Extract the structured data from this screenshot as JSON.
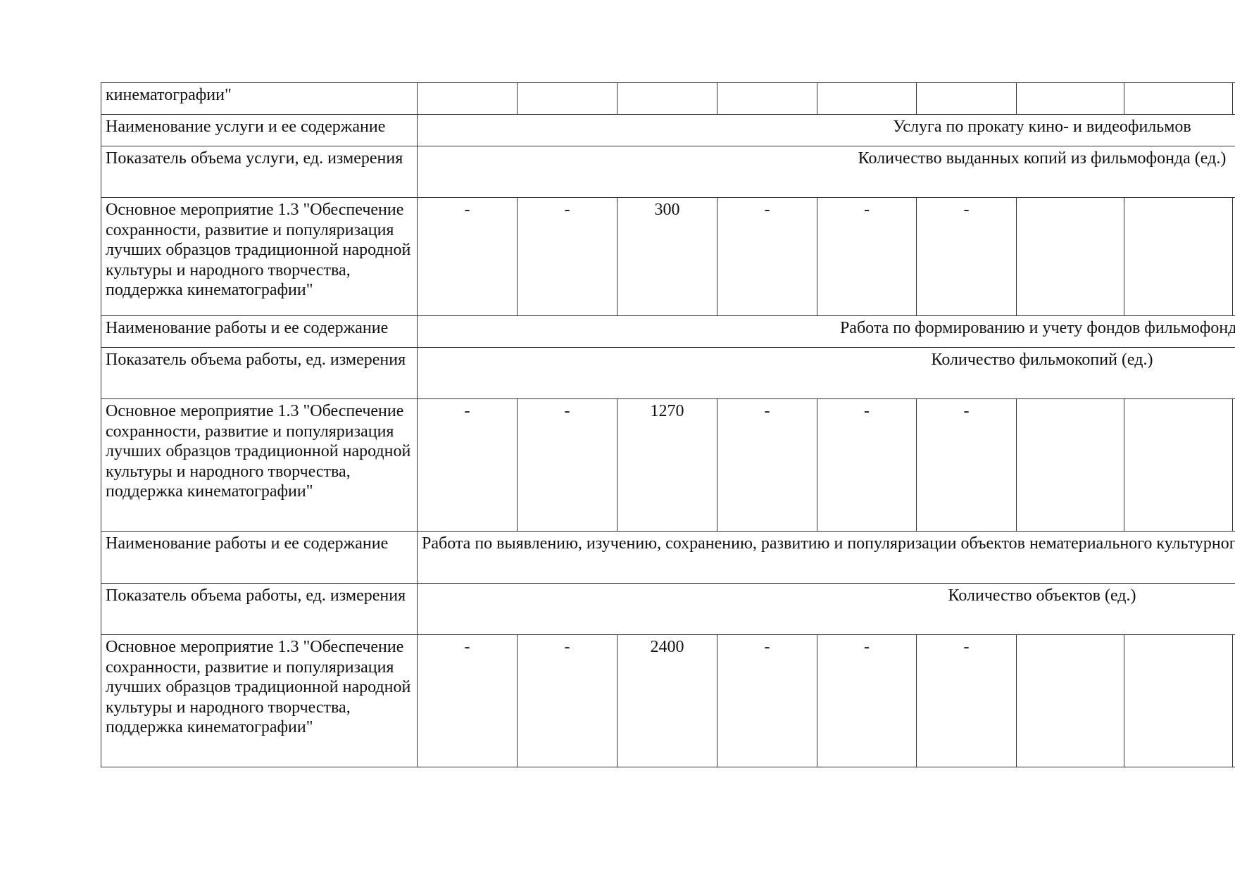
{
  "rows": [
    {
      "type": "values",
      "label": "кинематографии\"",
      "values": [
        "",
        "",
        "",
        "",
        "",
        "",
        "",
        "",
        "",
        "",
        "",
        ""
      ]
    },
    {
      "type": "span",
      "label": "Наименование услуги и ее содержание",
      "text": "Услуга по прокату кино- и видеофильмов"
    },
    {
      "type": "span",
      "label": "Показатель объема услуги, ед. измерения",
      "text": "Количество выданных копий из фильмофонда (ед.)"
    },
    {
      "type": "values",
      "label": "Основное мероприятие 1.3 \"Обеспечение сохранности, развитие и популяризация лучших образцов традиционной народной культуры и народного творчества, поддержка кинематографии\"",
      "values": [
        "-",
        "-",
        "300",
        "-",
        "-",
        "-",
        "",
        "",
        "",
        "",
        "",
        ""
      ]
    },
    {
      "type": "span",
      "label": "Наименование работы и ее содержание",
      "text": "Работа по формированию и учету фондов фильмофонда"
    },
    {
      "type": "span",
      "label": "Показатель объема работы, ед. измерения",
      "text": "Количество фильмокопий (ед.)"
    },
    {
      "type": "values",
      "label": "Основное мероприятие 1.3 \"Обеспечение сохранности, развитие и популяризация лучших образцов традиционной народной культуры и народного творчества, поддержка кинематографии\"",
      "values": [
        "-",
        "-",
        "1270",
        "-",
        "-",
        "-",
        "",
        "",
        "",
        "",
        "",
        ""
      ]
    },
    {
      "type": "span",
      "align": "left",
      "label": "Наименование работы и ее содержание",
      "text": "Работа по выявлению, изучению, сохранению, развитию и популяризации объектов нематериального культурного наследия в области традиционной народной культуры"
    },
    {
      "type": "span",
      "label": "Показатель объема работы, ед. измерения",
      "text": "Количество объектов (ед.)"
    },
    {
      "type": "values",
      "label": "Основное мероприятие 1.3 \"Обеспечение сохранности, развитие и популяризация лучших образцов традиционной народной культуры и народного творчества, поддержка кинематографии\"",
      "values": [
        "-",
        "-",
        "2400",
        "-",
        "-",
        "-",
        "",
        "",
        "",
        "",
        "",
        ""
      ]
    }
  ]
}
